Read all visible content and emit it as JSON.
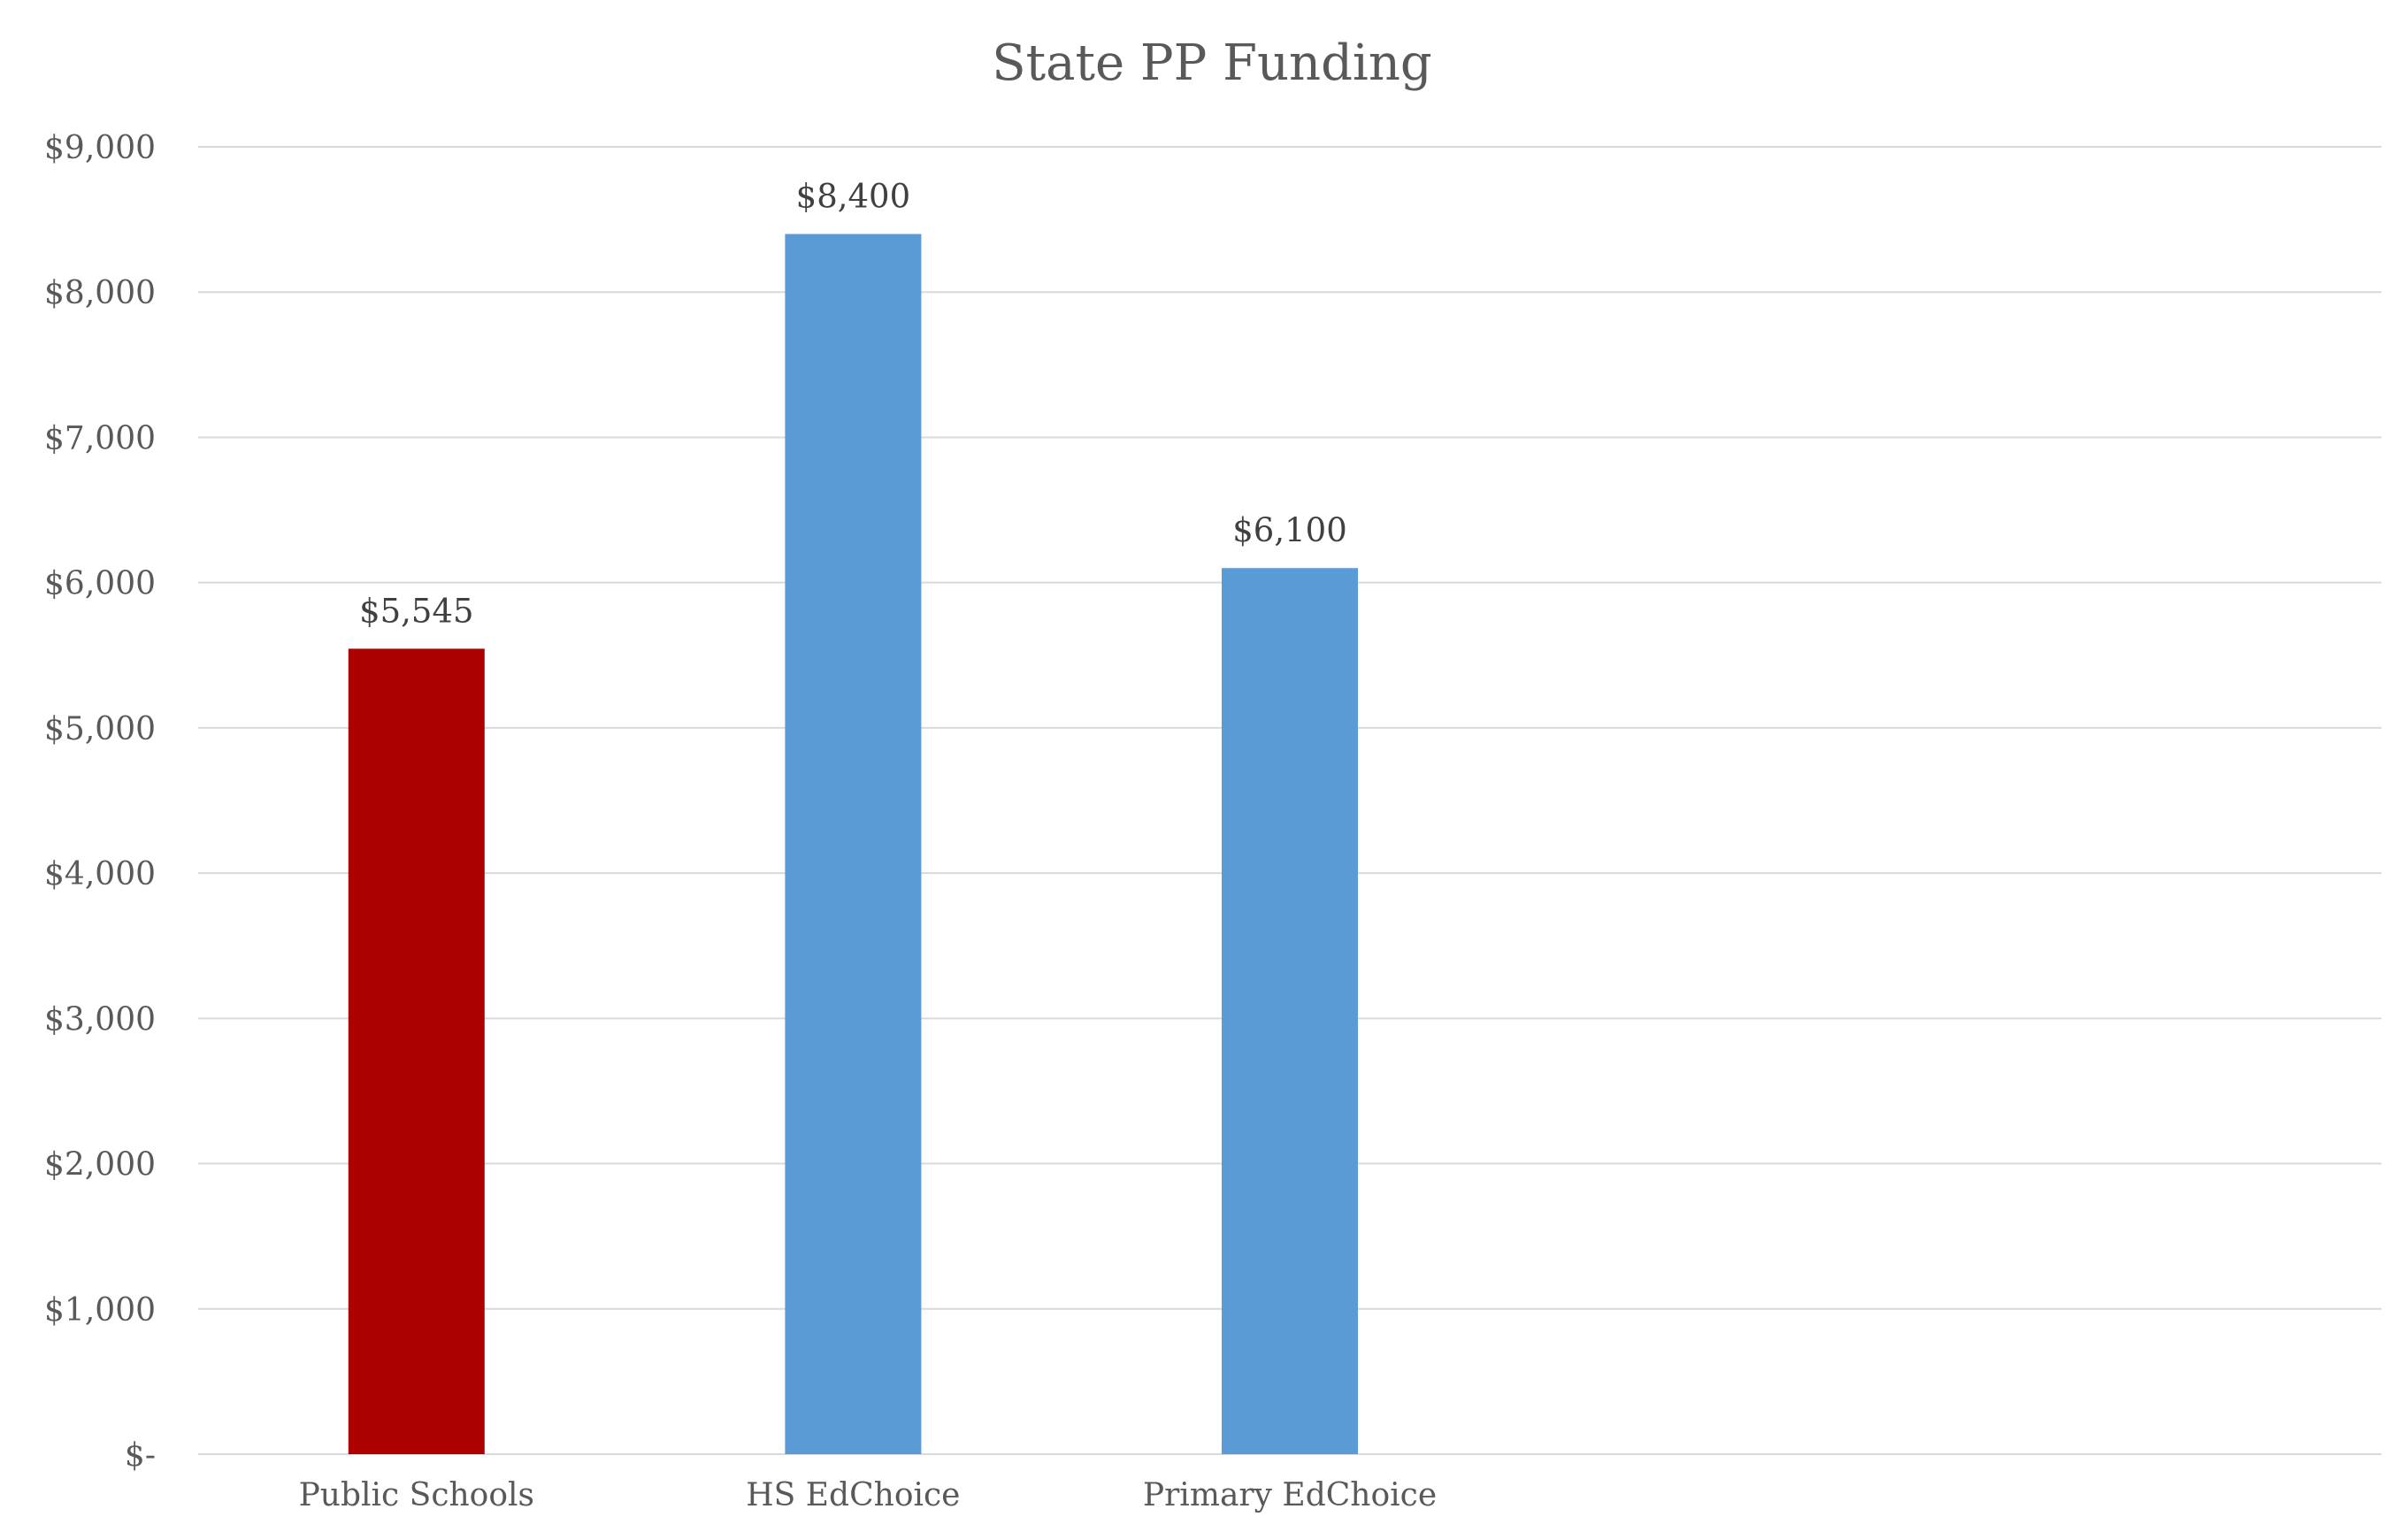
{
  "chart_data": {
    "type": "bar",
    "title": "State PP Funding",
    "xlabel": "",
    "ylabel": "",
    "categories": [
      "Public Schools",
      "HS EdChoice",
      "Primary EdChoice"
    ],
    "values": [
      5545,
      8400,
      6100
    ],
    "data_labels": [
      "$5,545",
      "$8,400",
      "$6,100"
    ],
    "bar_colors": [
      "#AD0000",
      "#5B9BD5",
      "#5B9BD5"
    ],
    "ylim": [
      0,
      9000
    ],
    "yticks": [
      0,
      1000,
      2000,
      3000,
      4000,
      5000,
      6000,
      7000,
      8000,
      9000
    ],
    "ytick_labels": [
      "$-",
      "$1,000",
      "$2,000",
      "$3,000",
      "$4,000",
      "$5,000",
      "$6,000",
      "$7,000",
      "$8,000",
      "$9,000"
    ],
    "grid": true,
    "legend": "none",
    "slot_count": 5
  }
}
